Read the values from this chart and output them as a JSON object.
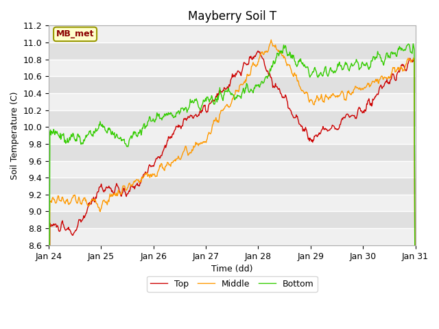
{
  "title": "Mayberry Soil T",
  "xlabel": "Time (dd)",
  "ylabel": "Soil Temperature (C)",
  "ylim": [
    8.6,
    11.2
  ],
  "yticks": [
    8.6,
    8.8,
    9.0,
    9.2,
    9.4,
    9.6,
    9.8,
    10.0,
    10.2,
    10.4,
    10.6,
    10.8,
    11.0,
    11.2
  ],
  "xtick_labels": [
    "Jan 24",
    "Jan 25",
    "Jan 26",
    "Jan 27",
    "Jan 28",
    "Jan 29",
    "Jan 30",
    "Jan 31"
  ],
  "colors": {
    "top": "#cc0000",
    "middle": "#ff9900",
    "bottom": "#33cc00"
  },
  "legend_labels": [
    "Top",
    "Middle",
    "Bottom"
  ],
  "annotation_text": "MB_met",
  "annotation_box_color": "#ffffcc",
  "annotation_border_color": "#999900",
  "plot_bg_color": "#e8e8e8",
  "fig_bg_color": "#ffffff",
  "line_width": 1.0,
  "title_fontsize": 12,
  "axis_fontsize": 9,
  "tick_fontsize": 9,
  "n_points": 672
}
